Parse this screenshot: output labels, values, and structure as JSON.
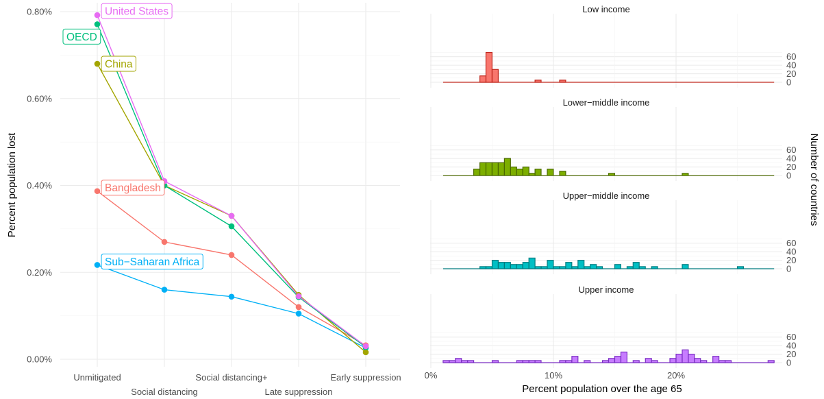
{
  "chart_data": [
    {
      "type": "line",
      "ylabel": "Percent population lost",
      "xlabel": "",
      "categories": [
        "Unmitigated",
        "Social distancing",
        "Social distancing+",
        "Late suppression",
        "Early suppression"
      ],
      "ylim": [
        0,
        0.8
      ],
      "yticks": [
        "0.00%",
        "0.20%",
        "0.40%",
        "0.60%",
        "0.80%"
      ],
      "grid": true,
      "legend": "direct labels at first point",
      "series": [
        {
          "name": "United States",
          "color": "#E76BF3",
          "values": [
            0.792,
            0.41,
            0.33,
            0.145,
            0.03
          ]
        },
        {
          "name": "OECD",
          "color": "#00BF7D",
          "values": [
            0.771,
            0.4,
            0.306,
            0.143,
            0.028
          ]
        },
        {
          "name": "China",
          "color": "#A3A500",
          "values": [
            0.68,
            0.4,
            0.33,
            0.148,
            0.016
          ]
        },
        {
          "name": "Bangladesh",
          "color": "#F8766D",
          "values": [
            0.387,
            0.27,
            0.24,
            0.12,
            0.032
          ]
        },
        {
          "name": "Sub−Saharan Africa",
          "color": "#00B0F6",
          "values": [
            0.217,
            0.16,
            0.144,
            0.105,
            0.026
          ]
        }
      ]
    },
    {
      "type": "bar",
      "subtype": "faceted histogram",
      "xlabel": "Percent population over the age 65",
      "ylabel": "Number of countries",
      "xlim": [
        0,
        28
      ],
      "xticks": [
        "0%",
        "10%",
        "20%"
      ],
      "yticks": [
        "0",
        "20",
        "40",
        "60"
      ],
      "ylim": [
        0,
        70
      ],
      "bin_start": 1,
      "bin_width": 0.5,
      "grid": true,
      "facets": [
        {
          "name": "Low income",
          "fill": "#F8766D",
          "stroke": "#C0281E",
          "counts": [
            0,
            0,
            0,
            0,
            0,
            0,
            15,
            70,
            30,
            0,
            0,
            0,
            0,
            0,
            0,
            5,
            0,
            0,
            0,
            5,
            0,
            0,
            0,
            0,
            0,
            0,
            0,
            0,
            0,
            0,
            0,
            0,
            0,
            0,
            0,
            0,
            0,
            0,
            0,
            0,
            0,
            0,
            0,
            0,
            0,
            0,
            0,
            0,
            0,
            0,
            0,
            0,
            0,
            0
          ]
        },
        {
          "name": "Lower−middle income",
          "fill": "#7CAE00",
          "stroke": "#4A6800",
          "counts": [
            0,
            0,
            0,
            0,
            0,
            15,
            30,
            30,
            30,
            30,
            40,
            20,
            15,
            20,
            5,
            15,
            0,
            15,
            0,
            10,
            0,
            0,
            0,
            0,
            0,
            0,
            0,
            5,
            0,
            0,
            0,
            0,
            0,
            0,
            0,
            0,
            0,
            0,
            0,
            5,
            0,
            0,
            0,
            0,
            0,
            0,
            0,
            0,
            0,
            0,
            0,
            0,
            0,
            0
          ]
        },
        {
          "name": "Upper−middle income",
          "fill": "#00BFC4",
          "stroke": "#007A7E",
          "counts": [
            0,
            0,
            0,
            0,
            0,
            0,
            5,
            5,
            20,
            15,
            15,
            10,
            10,
            15,
            25,
            5,
            5,
            20,
            5,
            5,
            15,
            5,
            20,
            5,
            10,
            5,
            0,
            0,
            10,
            0,
            5,
            15,
            5,
            0,
            5,
            0,
            0,
            0,
            0,
            10,
            0,
            0,
            0,
            0,
            0,
            0,
            0,
            0,
            5,
            0,
            0,
            0,
            0,
            0
          ]
        },
        {
          "name": "Upper income",
          "fill": "#C77CFF",
          "stroke": "#7A2FC2",
          "counts": [
            5,
            5,
            10,
            5,
            5,
            0,
            0,
            0,
            5,
            0,
            0,
            0,
            5,
            5,
            5,
            5,
            0,
            0,
            0,
            5,
            5,
            15,
            0,
            5,
            0,
            0,
            5,
            10,
            15,
            25,
            0,
            5,
            0,
            10,
            5,
            0,
            0,
            10,
            20,
            30,
            20,
            10,
            5,
            0,
            15,
            5,
            5,
            0,
            0,
            0,
            0,
            0,
            0,
            5
          ]
        }
      ]
    }
  ]
}
